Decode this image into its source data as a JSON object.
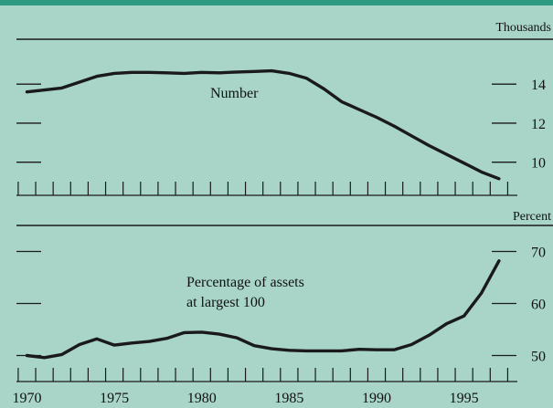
{
  "chart_data": [
    {
      "type": "line",
      "unit_label": "Thousands",
      "series_label": "Number",
      "x": [
        1970,
        1971,
        1972,
        1973,
        1974,
        1975,
        1976,
        1977,
        1978,
        1979,
        1980,
        1981,
        1982,
        1983,
        1984,
        1985,
        1986,
        1987,
        1988,
        1989,
        1990,
        1991,
        1992,
        1993,
        1994,
        1995,
        1996,
        1997
      ],
      "values": [
        13.6,
        13.7,
        13.8,
        14.1,
        14.4,
        14.55,
        14.6,
        14.6,
        14.58,
        14.55,
        14.6,
        14.58,
        14.62,
        14.65,
        14.68,
        14.55,
        14.3,
        13.75,
        13.1,
        12.7,
        12.3,
        11.85,
        11.35,
        10.85,
        10.4,
        9.95,
        9.5,
        9.15
      ],
      "yticks": [
        10,
        12,
        14
      ],
      "ylim": [
        8.3,
        16.3
      ],
      "xlim": [
        1969.4,
        1998.0
      ],
      "line_color": "#1a1a1a"
    },
    {
      "type": "line",
      "unit_label": "Percent",
      "series_label_lines": [
        "Percentage of assets",
        "at largest 100"
      ],
      "x": [
        1970,
        1971,
        1972,
        1973,
        1974,
        1975,
        1976,
        1977,
        1978,
        1979,
        1980,
        1981,
        1982,
        1983,
        1984,
        1985,
        1986,
        1987,
        1988,
        1989,
        1990,
        1991,
        1992,
        1993,
        1994,
        1995,
        1996,
        1997
      ],
      "values": [
        50,
        49.6,
        50.2,
        52.1,
        53.2,
        52,
        52.4,
        52.7,
        53.3,
        54.4,
        54.5,
        54.1,
        53.4,
        51.9,
        51.3,
        51,
        50.9,
        50.9,
        50.9,
        51.2,
        51.1,
        51.1,
        52.1,
        53.9,
        56.1,
        57.6,
        62,
        68.2
      ],
      "yticks": [
        50,
        60,
        70
      ],
      "ylim": [
        45,
        75
      ],
      "xlim": [
        1969.4,
        1998.0
      ],
      "line_color": "#1a1a1a"
    }
  ],
  "x_axis": {
    "labels": [
      "1970",
      "1975",
      "1980",
      "1985",
      "1990",
      "1995"
    ],
    "label_years": [
      1970,
      1975,
      1980,
      1985,
      1990,
      1995
    ],
    "tick_years": [
      1970,
      1971,
      1972,
      1973,
      1974,
      1975,
      1976,
      1977,
      1978,
      1979,
      1980,
      1981,
      1982,
      1983,
      1984,
      1985,
      1986,
      1987,
      1988,
      1989,
      1990,
      1991,
      1992,
      1993,
      1994,
      1995,
      1996,
      1997
    ]
  },
  "colors": {
    "background": "#a8d5c8",
    "top_rule": "#2e9a82",
    "ink": "#1a1a1a"
  }
}
